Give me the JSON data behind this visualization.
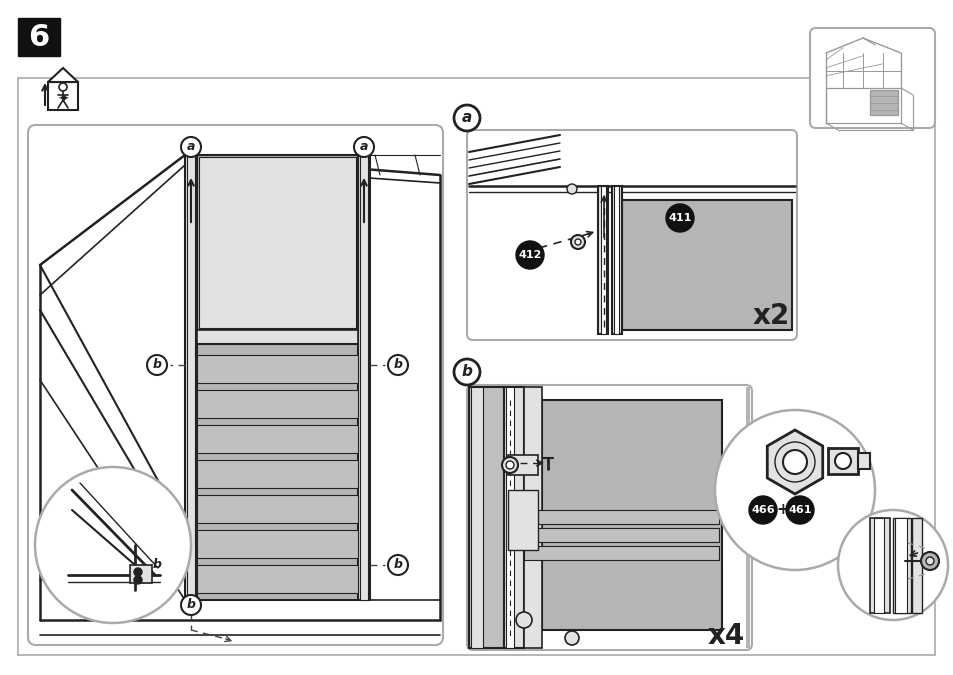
{
  "bg_color": "#ffffff",
  "border_color": "#aaaaaa",
  "step_number": "6",
  "label_a": "a",
  "label_b": "b",
  "part_411": "411",
  "part_412": "412",
  "part_466": "466",
  "part_461": "461",
  "x2_text": "x2",
  "x4_text": "x4",
  "plus_text": "+",
  "dark_fill": "#111111",
  "gray_fill": "#c0c0c0",
  "light_gray": "#e2e2e2",
  "mid_gray": "#999999",
  "panel_gray": "#b5b5b5",
  "dark_gray": "#888888",
  "line_color": "#222222",
  "line_color2": "#444444"
}
